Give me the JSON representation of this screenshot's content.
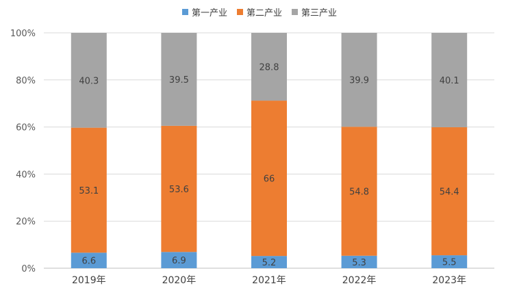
{
  "chart_data": {
    "type": "bar",
    "stacked": "percent",
    "categories": [
      "2019年",
      "2020年",
      "2021年",
      "2022年",
      "2023年"
    ],
    "series": [
      {
        "name": "第一产业",
        "color": "#5b9bd5",
        "values": [
          6.6,
          6.9,
          5.2,
          5.3,
          5.5
        ]
      },
      {
        "name": "第二产业",
        "color": "#ed7d31",
        "values": [
          53.1,
          53.6,
          66,
          54.8,
          54.4
        ]
      },
      {
        "name": "第三产业",
        "color": "#a5a5a5",
        "values": [
          40.3,
          39.5,
          28.8,
          39.9,
          40.1
        ]
      }
    ],
    "ylim": [
      0,
      100
    ],
    "yticks": [
      "0%",
      "20%",
      "40%",
      "60%",
      "80%",
      "100%"
    ],
    "grid": true,
    "legend_position": "top",
    "title": "",
    "xlabel": "",
    "ylabel": ""
  }
}
